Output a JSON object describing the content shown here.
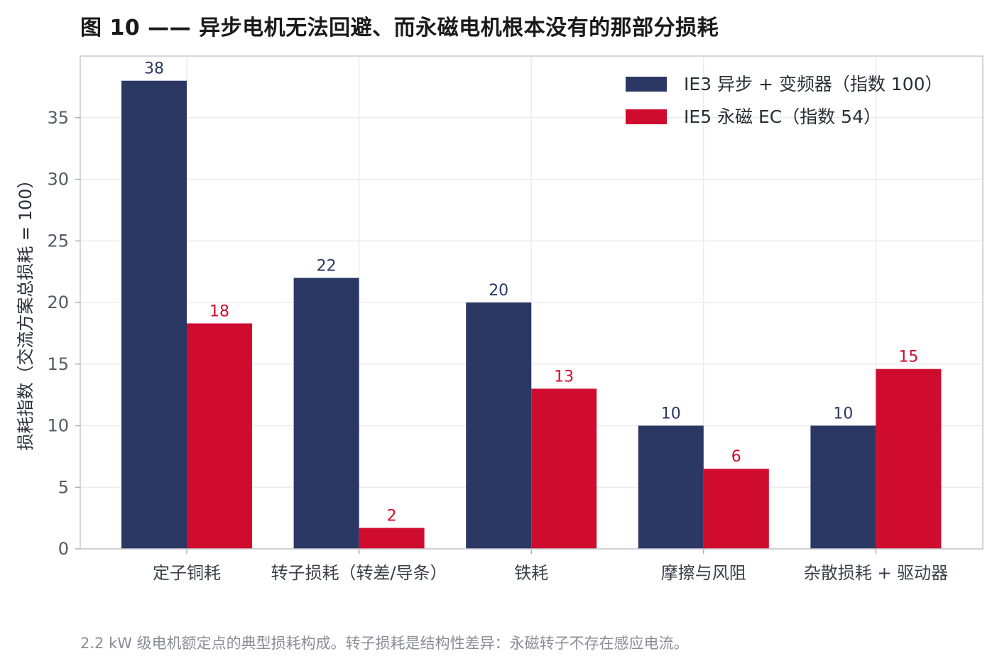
{
  "figure": {
    "title": "图 10 —— 异步电机无法回避、而永磁电机根本没有的那部分损耗",
    "caption": "2.2 kW 级电机额定点的典型损耗构成。转子损耗是结构性差异：永磁转子不存在感应电流。"
  },
  "colors": {
    "series_1": "#2c3864",
    "series_2": "#d00c2e",
    "grid": "#ececf0",
    "frame": "#c8c8d0"
  },
  "chart_data": {
    "type": "bar",
    "title": "",
    "xlabel": "",
    "ylabel": "损耗指数（交流方案总损耗 = 100）",
    "categories": [
      "定子铜耗",
      "转子损耗（转差/导条）",
      "铁耗",
      "摩擦与风阻",
      "杂散损耗 + 驱动器"
    ],
    "series": [
      {
        "name": "IE3 异步 + 变频器（指数 100）",
        "values": [
          38,
          22,
          20,
          10,
          10
        ],
        "labels": [
          "38",
          "22",
          "20",
          "10",
          "10"
        ]
      },
      {
        "name": "IE5 永磁 EC（指数 54）",
        "values": [
          18.3,
          1.7,
          13,
          6.5,
          14.6
        ],
        "labels": [
          "18",
          "2",
          "13",
          "6",
          "15"
        ]
      }
    ],
    "ylim": [
      0,
      40
    ],
    "yticks": [
      0,
      5,
      10,
      15,
      20,
      25,
      30,
      35
    ],
    "grid": true,
    "legend": "top-right"
  }
}
